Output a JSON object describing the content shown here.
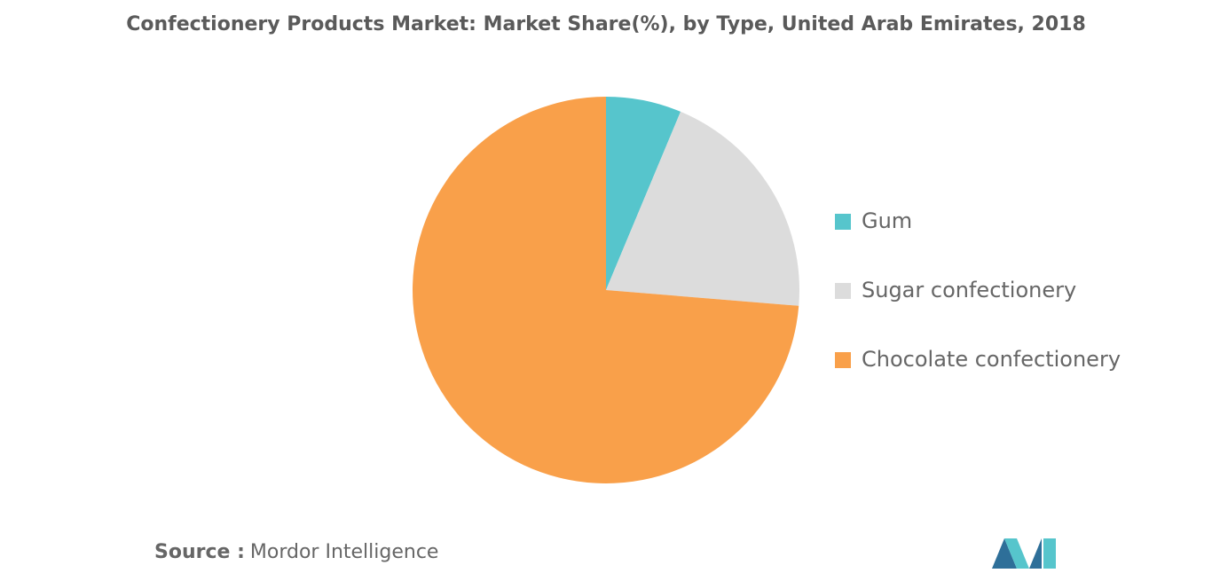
{
  "chart_data": {
    "type": "pie",
    "title": "Confectionery Products Market: Market Share(%), by Type, United Arab Emirates, 2018",
    "categories": [
      "Gum",
      "Sugar confectionery",
      "Chocolate confectionery"
    ],
    "values": [
      6.3,
      20.0,
      73.7
    ],
    "colors": [
      "#56c5cc",
      "#dcdcdc",
      "#f9a04a"
    ],
    "legend": "right",
    "source_label": "Source :",
    "source": "Mordor Intelligence"
  }
}
